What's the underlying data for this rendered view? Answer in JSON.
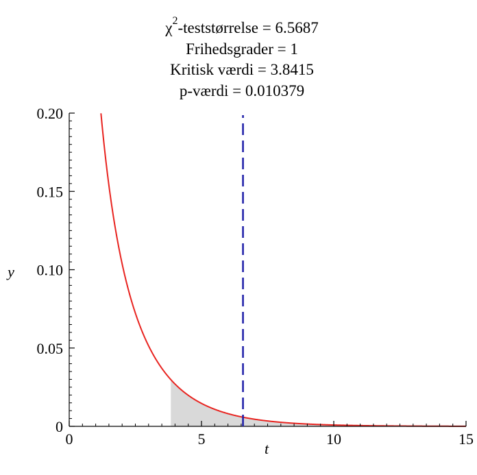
{
  "chart_data": {
    "type": "line",
    "title_lines": [
      {
        "symbol": "χ",
        "superscript": "2",
        "text": "-teststørrelse = 6.5687"
      },
      {
        "text": "Frihedsgrader = 1"
      },
      {
        "text": "Kritisk værdi = 3.8415"
      },
      {
        "text": "p-værdi = 0.010379"
      }
    ],
    "xlabel": "t",
    "ylabel": "y",
    "xlim": [
      0,
      15
    ],
    "ylim": [
      0,
      0.2
    ],
    "x_ticks": [
      0,
      5,
      10,
      15
    ],
    "x_tick_labels": [
      "0",
      "5",
      "10",
      "15"
    ],
    "y_ticks": [
      0,
      0.05,
      0.1,
      0.15,
      0.2
    ],
    "y_tick_labels": [
      "0",
      "0.05",
      "0.10",
      "0.15",
      "0.20"
    ],
    "distribution": "chi-square",
    "degrees_of_freedom": 1,
    "test_statistic": 6.5687,
    "critical_value": 3.8415,
    "p_value": 0.010379,
    "grid": false,
    "colors": {
      "curve": "#e8231f",
      "statistic_line": "#1a1aa6",
      "critical_region": "#d9d9d9",
      "axis": "#000000"
    }
  }
}
